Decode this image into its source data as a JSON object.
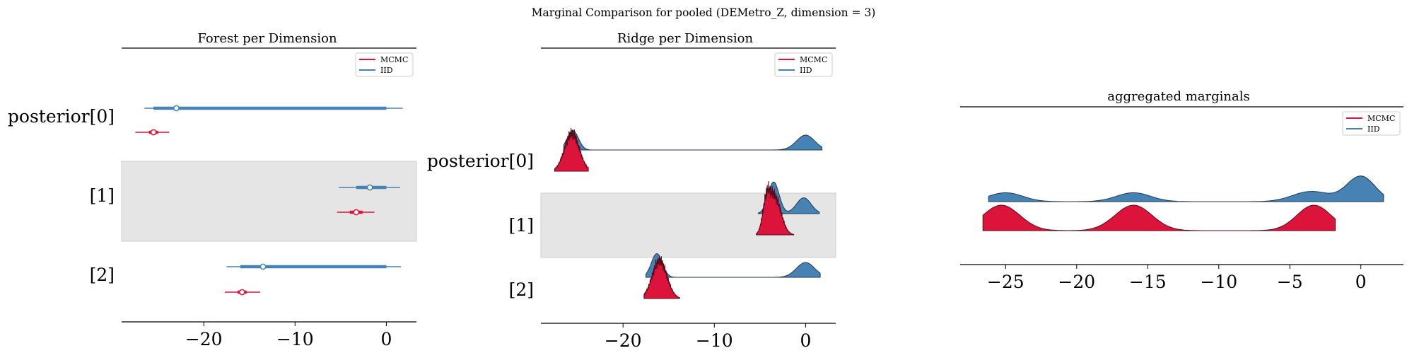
{
  "figure": {
    "suptitle": "Marginal Comparison for pooled (DEMetro_Z, dimension = 3)"
  },
  "colors": {
    "mcmc": "#dc143c",
    "iid": "#4682b4",
    "band": "#e5e5e5",
    "axis": "#000000"
  },
  "chart_data": [
    {
      "type": "forest",
      "title": "Forest per Dimension",
      "xlim": [
        -29,
        3.3
      ],
      "xticks": [
        -20,
        -10,
        0
      ],
      "xtick_labels": [
        "−20",
        "−10",
        "0"
      ],
      "legend": {
        "placement": "top-right",
        "entries": [
          "MCMC",
          "IID"
        ]
      },
      "rows": [
        {
          "label": "posterior[0]",
          "iid": {
            "median": -23,
            "hdi50": [
              -25.5,
              0
            ],
            "hdi94": [
              -26.5,
              1.8
            ]
          },
          "mcmc": {
            "median": -25.5,
            "hdi50": [
              -26,
              -25
            ],
            "hdi94": [
              -27.5,
              -23.8
            ]
          }
        },
        {
          "label": "[1]",
          "iid": {
            "median": -1.8,
            "hdi50": [
              -3.3,
              0
            ],
            "hdi94": [
              -5.2,
              1.5
            ]
          },
          "mcmc": {
            "median": -3.3,
            "hdi50": [
              -4,
              -2.6
            ],
            "hdi94": [
              -5.4,
              -1.3
            ]
          }
        },
        {
          "label": "[2]",
          "iid": {
            "median": -13.5,
            "hdi50": [
              -16,
              0
            ],
            "hdi94": [
              -17.5,
              1.6
            ]
          },
          "mcmc": {
            "median": -15.8,
            "hdi50": [
              -16.3,
              -15.3
            ],
            "hdi94": [
              -17.7,
              -13.8
            ]
          }
        }
      ]
    },
    {
      "type": "ridge",
      "title": "Ridge per Dimension",
      "xlim": [
        -29,
        3.3
      ],
      "xticks": [
        -20,
        -10,
        0
      ],
      "xtick_labels": [
        "−20",
        "−10",
        "0"
      ],
      "legend": {
        "placement": "top-right",
        "entries": [
          "MCMC",
          "IID"
        ]
      },
      "rows": [
        {
          "label": "posterior[0]",
          "iid": {
            "range": [
              -26.5,
              1.8
            ],
            "peaks": [
              [
                -25.5,
                1.0,
                0.6
              ],
              [
                0,
                0.75,
                1.0
              ]
            ]
          },
          "mcmc": {
            "range": [
              -27.5,
              -23.8
            ],
            "peaks": [
              [
                -25.6,
                1.9,
                0.8
              ]
            ]
          }
        },
        {
          "label": "[1]",
          "iid": {
            "range": [
              -5.2,
              1.5
            ],
            "peaks": [
              [
                -3.5,
                1.6,
                0.6
              ],
              [
                -0.2,
                0.8,
                0.8
              ]
            ]
          },
          "mcmc": {
            "range": [
              -5.4,
              -1.3
            ],
            "peaks": [
              [
                -3.4,
                1.9,
                0.7
              ],
              [
                -4.3,
                1.3,
                0.4
              ]
            ]
          }
        },
        {
          "label": "[2]",
          "iid": {
            "range": [
              -17.5,
              1.6
            ],
            "peaks": [
              [
                -16.3,
                1.2,
                0.6
              ],
              [
                0,
                0.75,
                1.0
              ]
            ]
          },
          "mcmc": {
            "range": [
              -17.7,
              -13.8
            ],
            "peaks": [
              [
                -16.0,
                1.9,
                0.8
              ]
            ]
          }
        }
      ]
    },
    {
      "type": "ridge",
      "title": "aggregated marginals",
      "xlim": [
        -28.2,
        3.0
      ],
      "xticks": [
        -25,
        -20,
        -15,
        -10,
        -5,
        0
      ],
      "xtick_labels": [
        "−25",
        "−20",
        "−15",
        "−10",
        "−5",
        "0"
      ],
      "legend": {
        "placement": "top-right",
        "entries": [
          "MCMC",
          "IID"
        ]
      },
      "rows": [
        {
          "label": "",
          "iid": {
            "range": [
              -26.2,
              1.6
            ],
            "peaks": [
              [
                -25,
                0.35,
                1.2
              ],
              [
                -16,
                0.35,
                1.2
              ],
              [
                -3.5,
                0.4,
                1.3
              ],
              [
                0,
                1.0,
                1.0
              ]
            ]
          },
          "mcmc": {
            "range": [
              -26.6,
              -1.8
            ],
            "peaks": [
              [
                -25.3,
                1.0,
                1.3
              ],
              [
                -16,
                1.0,
                1.3
              ],
              [
                -3.3,
                1.0,
                1.2
              ]
            ]
          }
        }
      ]
    }
  ]
}
